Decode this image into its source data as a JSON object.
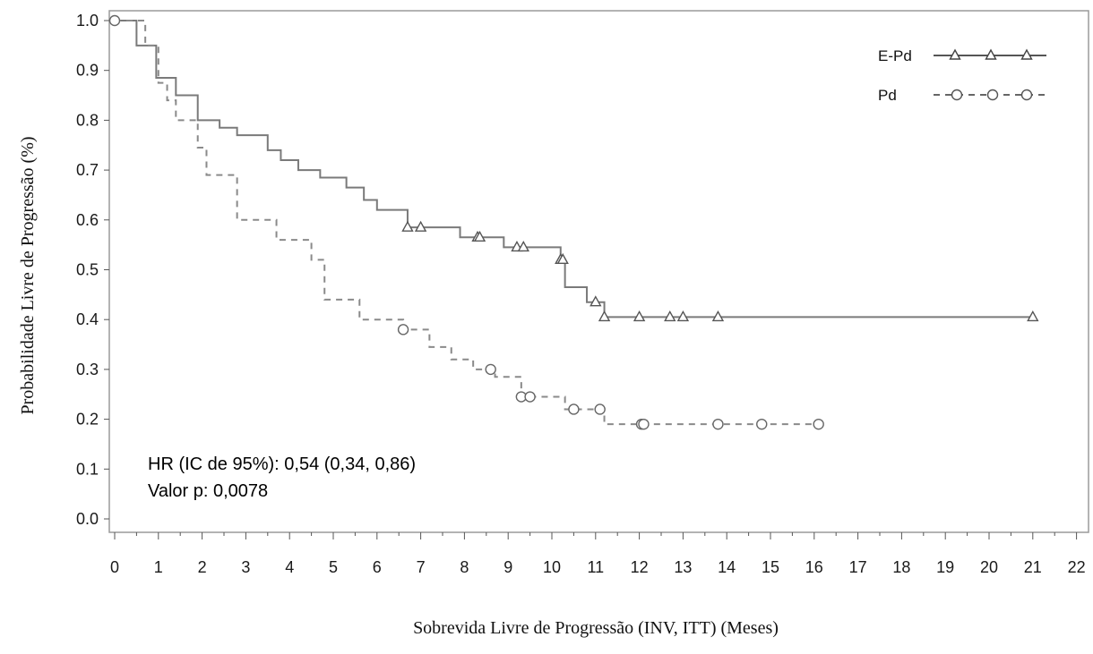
{
  "chart_data": {
    "type": "line",
    "subtype": "kaplan-meier step curves",
    "title": "",
    "xlabel": "Sobrevida Livre de Progressão (INV, ITT) (Meses)",
    "ylabel": "Probabilidade Livre de Progressão (%)",
    "xlim": [
      0,
      22
    ],
    "ylim": [
      0,
      1
    ],
    "xticks": [
      "0",
      "1",
      "2",
      "3",
      "4",
      "5",
      "6",
      "7",
      "8",
      "9",
      "10",
      "11",
      "12",
      "13",
      "14",
      "15",
      "16",
      "17",
      "18",
      "19",
      "20",
      "21",
      "22"
    ],
    "yticks": [
      "0.0",
      "0.1",
      "0.2",
      "0.3",
      "0.4",
      "0.5",
      "0.6",
      "0.7",
      "0.8",
      "0.9",
      "1.0"
    ],
    "grid": false,
    "legend_position": "top-right",
    "series": [
      {
        "name": "E-Pd",
        "line_style": "solid",
        "marker": "triangle",
        "color": "#7a7a7a",
        "steps": [
          [
            0,
            1.0
          ],
          [
            0.5,
            0.95
          ],
          [
            0.95,
            0.885
          ],
          [
            1.4,
            0.85
          ],
          [
            1.9,
            0.8
          ],
          [
            2.4,
            0.785
          ],
          [
            2.8,
            0.77
          ],
          [
            3.5,
            0.74
          ],
          [
            3.8,
            0.72
          ],
          [
            4.2,
            0.7
          ],
          [
            4.7,
            0.685
          ],
          [
            5.3,
            0.665
          ],
          [
            5.7,
            0.64
          ],
          [
            6.0,
            0.62
          ],
          [
            6.7,
            0.585
          ],
          [
            7.9,
            0.565
          ],
          [
            8.9,
            0.545
          ],
          [
            10.2,
            0.52
          ],
          [
            10.3,
            0.465
          ],
          [
            10.8,
            0.435
          ],
          [
            11.2,
            0.405
          ],
          [
            21.0,
            0.405
          ]
        ],
        "censor_times": [
          6.7,
          7.0,
          8.3,
          8.35,
          9.2,
          9.35,
          10.2,
          10.25,
          11.0,
          11.2,
          12.0,
          12.7,
          13.0,
          13.8,
          21.0
        ]
      },
      {
        "name": "Pd",
        "line_style": "dashed",
        "marker": "circle",
        "color": "#8a8a8a",
        "steps": [
          [
            0,
            1.0
          ],
          [
            0.7,
            0.95
          ],
          [
            1.0,
            0.875
          ],
          [
            1.2,
            0.84
          ],
          [
            1.4,
            0.8
          ],
          [
            1.9,
            0.745
          ],
          [
            2.1,
            0.69
          ],
          [
            2.8,
            0.6
          ],
          [
            3.7,
            0.56
          ],
          [
            4.5,
            0.52
          ],
          [
            4.8,
            0.44
          ],
          [
            5.6,
            0.4
          ],
          [
            6.6,
            0.38
          ],
          [
            7.2,
            0.345
          ],
          [
            7.7,
            0.32
          ],
          [
            8.2,
            0.3
          ],
          [
            8.7,
            0.285
          ],
          [
            9.3,
            0.245
          ],
          [
            10.3,
            0.22
          ],
          [
            11.2,
            0.19
          ],
          [
            16.1,
            0.19
          ]
        ],
        "censor_times": [
          0.0,
          6.6,
          8.6,
          9.3,
          9.5,
          10.5,
          11.1,
          12.05,
          12.1,
          13.8,
          14.8,
          16.1
        ]
      }
    ],
    "annotations": [
      "HR (IC de 95%): 0,54 (0,34, 0,86)",
      "Valor p: 0,0078"
    ]
  }
}
